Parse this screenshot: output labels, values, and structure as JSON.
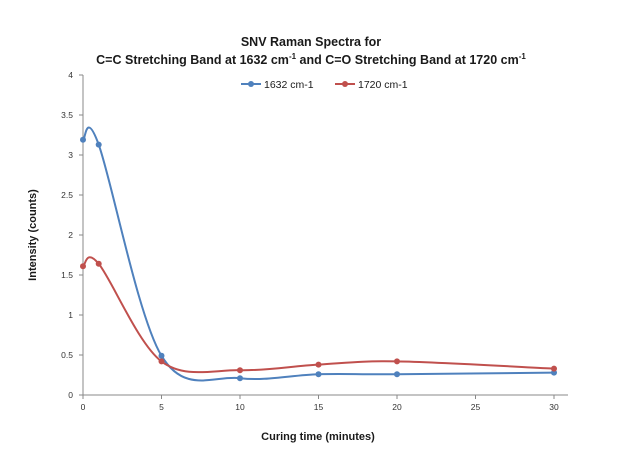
{
  "chart_data": {
    "type": "line",
    "title_line1": "SNV Raman Spectra for",
    "title_line2": {
      "part1": "C=C Stretching Band at 1632 cm",
      "sup1": "-1",
      "part2": " and C=O Stretching Band at 1720 cm",
      "sup2": "-1"
    },
    "xlabel": "Curing time (minutes)",
    "ylabel": "Intensity (counts)",
    "xlim": [
      0,
      30
    ],
    "ylim": [
      0,
      4
    ],
    "xticks": [
      "0",
      "5",
      "10",
      "15",
      "20",
      "25",
      "30"
    ],
    "xtick_values": [
      0,
      5,
      10,
      15,
      20,
      25,
      30
    ],
    "yticks": [
      "0",
      "0.5",
      "1",
      "1.5",
      "2",
      "2.5",
      "3",
      "3.5",
      "4"
    ],
    "ytick_values": [
      0,
      0.5,
      1,
      1.5,
      2,
      2.5,
      3,
      3.5,
      4
    ],
    "grid": false,
    "legend_position": "top",
    "smooth": true,
    "series": [
      {
        "name": "1632 cm-1",
        "color": "#4f81bd",
        "x": [
          0,
          1,
          5,
          10,
          15,
          20,
          30
        ],
        "y": [
          3.19,
          3.13,
          0.49,
          0.21,
          0.26,
          0.26,
          0.28
        ]
      },
      {
        "name": "1720 cm-1",
        "color": "#c0504d",
        "x": [
          0,
          1,
          5,
          10,
          15,
          20,
          30
        ],
        "y": [
          1.61,
          1.64,
          0.42,
          0.31,
          0.38,
          0.42,
          0.33
        ]
      }
    ]
  }
}
